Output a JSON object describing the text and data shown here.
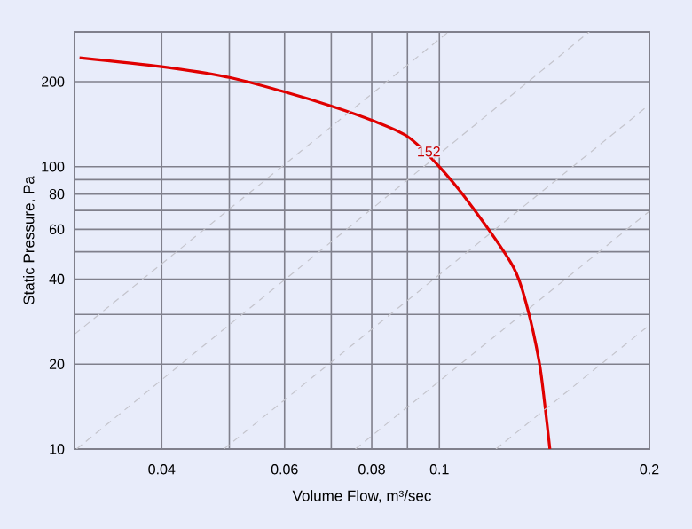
{
  "chart_data": {
    "type": "line",
    "xlabel": "Volume Flow, m³/sec",
    "ylabel": "Static Pressure, Pa",
    "log": "xy",
    "grid": true,
    "marker": "none",
    "line_style": "solid",
    "xlim": [
      0.03,
      0.2
    ],
    "ylim": [
      10,
      300
    ],
    "xticks": [
      0.04,
      {
        "value": 0.05,
        "label": null
      },
      0.06,
      {
        "value": 0.07,
        "label": null
      },
      0.08,
      {
        "value": 0.09,
        "label": null
      },
      0.1,
      0.2
    ],
    "yticks": [
      10,
      20,
      {
        "value": 30,
        "label": null
      },
      40,
      {
        "value": 50,
        "label": null
      },
      60,
      {
        "value": 70,
        "label": null
      },
      80,
      {
        "value": 90,
        "label": null
      },
      100,
      200
    ],
    "annotations": [
      {
        "text": "152",
        "x": 0.1,
        "y": 100
      }
    ],
    "series": [
      {
        "color": "#e00000",
        "x": [
          0.0305,
          0.04,
          0.05,
          0.06,
          0.07,
          0.08,
          0.09,
          0.1,
          0.1117,
          0.1276,
          0.1337,
          0.139,
          0.1416,
          0.144
        ],
        "values": [
          243,
          226,
          207,
          184,
          164,
          146,
          128,
          100,
          71.5,
          44.2,
          31.6,
          20.4,
          14.4,
          10
        ]
      },
      {
        "color": "#c4c4cc",
        "line_style": "dashed",
        "x": [
          0.03,
          0.103
        ],
        "values": [
          25.5,
          300
        ]
      },
      {
        "color": "#c4c4cc",
        "line_style": "dashed",
        "x": [
          0.0302,
          0.164
        ],
        "values": [
          10,
          300
        ]
      },
      {
        "color": "#c4c4cc",
        "line_style": "dashed",
        "x": [
          0.0491,
          0.2
        ],
        "values": [
          10,
          166
        ]
      },
      {
        "color": "#c4c4cc",
        "line_style": "dashed",
        "x": [
          0.0758,
          0.2
        ],
        "values": [
          10,
          69.6
        ]
      },
      {
        "color": "#c4c4cc",
        "line_style": "dashed",
        "x": [
          0.1205,
          0.2
        ],
        "values": [
          10,
          27.5
        ]
      }
    ]
  }
}
